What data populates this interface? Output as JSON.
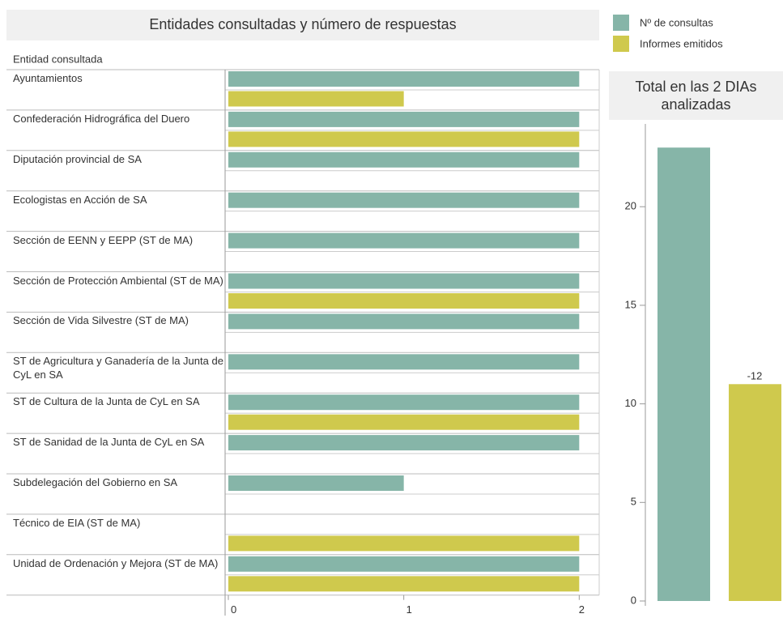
{
  "chart_data": [
    {
      "type": "hbar-grouped",
      "title": "Entidades consultadas y número de respuestas",
      "row_header": "Entidad consultada",
      "categories": [
        "Ayuntamientos",
        "Confederación Hidrográfica del Duero",
        "Diputación provincial de SA",
        "Ecologistas en Acción de SA",
        "Sección de EENN y EEPP (ST de MA)",
        "Sección de Protección Ambiental (ST de MA)",
        "Sección de Vida Silvestre (ST de MA)",
        "ST de Agricultura y Ganadería de la Junta de CyL en SA",
        "ST de Cultura de la Junta de CyL en SA",
        "ST de Sanidad de la Junta de CyL en SA",
        "Subdelegación del Gobierno en SA",
        "Técnico de EIA (ST de MA)",
        "Unidad de Ordenación y Mejora (ST de MA)"
      ],
      "series": [
        {
          "name": "Nº de consultas",
          "color": "#86b5a8",
          "values": [
            2,
            2,
            2,
            2,
            2,
            2,
            2,
            2,
            2,
            2,
            1,
            null,
            2
          ]
        },
        {
          "name": "Informes emitidos",
          "color": "#cfc94d",
          "values": [
            1,
            2,
            null,
            null,
            null,
            2,
            null,
            null,
            2,
            null,
            null,
            2,
            2
          ]
        }
      ],
      "xlim": [
        0,
        2.1
      ],
      "xticks": [
        0,
        1,
        2
      ]
    },
    {
      "type": "bar",
      "title": "Total en las 2 DIAs analizadas",
      "categories": [
        null,
        null
      ],
      "values": [
        23,
        11
      ],
      "colors": [
        "#86b5a8",
        "#cfc94d"
      ],
      "annotation": "-12",
      "ylim": [
        0,
        24.2
      ],
      "yticks": [
        0,
        5,
        10,
        15,
        20
      ]
    }
  ]
}
